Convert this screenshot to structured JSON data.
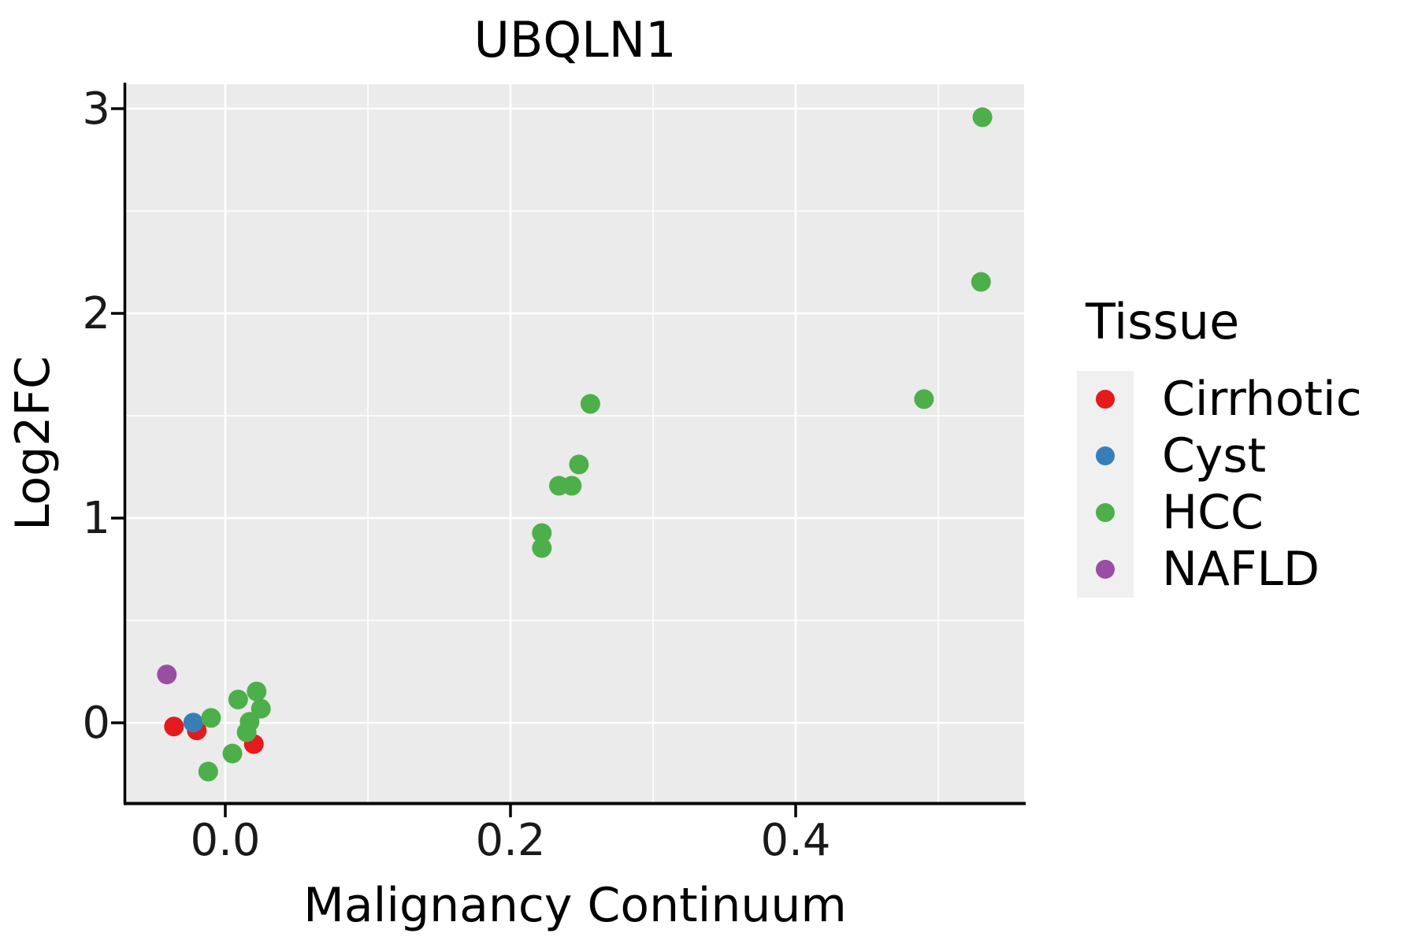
{
  "chart_data": {
    "type": "scatter",
    "title": "UBQLN1",
    "xlabel": "Malignancy Continuum",
    "ylabel": "Log2FC",
    "xlim": [
      -0.0696,
      0.5602
    ],
    "ylim": [
      -0.3885,
      3.1192
    ],
    "x_ticks": {
      "values": [
        0.0,
        0.2,
        0.4
      ],
      "labels": [
        "0.0",
        "0.2",
        "0.4"
      ]
    },
    "y_ticks": {
      "values": [
        0,
        1,
        2,
        3
      ],
      "labels": [
        "0",
        "1",
        "2",
        "3"
      ]
    },
    "x_minor_ticks": [
      0.1,
      0.3,
      0.5
    ],
    "y_minor_ticks": [
      0.5,
      1.5,
      2.5
    ],
    "grid": true,
    "panel_color": "#EBEBEB",
    "grid_color": "#FFFFFF",
    "axis_color": "#000000",
    "point_radius_px": 12.5,
    "legend": {
      "title": "Tissue",
      "position": "right",
      "key_fill": "#F0F0F0"
    },
    "series": [
      {
        "name": "Cirrhotic",
        "color": "#E41A1C",
        "points": [
          [
            -0.036,
            -0.018
          ],
          [
            -0.02,
            -0.037
          ],
          [
            0.02,
            -0.104
          ]
        ]
      },
      {
        "name": "Cyst",
        "color": "#377EB8",
        "points": [
          [
            -0.0225,
            0.001
          ]
        ]
      },
      {
        "name": "HCC",
        "color": "#4DAF4A",
        "points": [
          [
            -0.012,
            -0.238
          ],
          [
            0.005,
            -0.15
          ],
          [
            0.015,
            -0.046
          ],
          [
            0.017,
            0.005
          ],
          [
            -0.01,
            0.024
          ],
          [
            0.025,
            0.069
          ],
          [
            0.009,
            0.114
          ],
          [
            0.022,
            0.153
          ],
          [
            0.222,
            0.854
          ],
          [
            0.222,
            0.927
          ],
          [
            0.234,
            1.158
          ],
          [
            0.243,
            1.158
          ],
          [
            0.248,
            1.262
          ],
          [
            0.256,
            1.558
          ],
          [
            0.49,
            1.581
          ],
          [
            0.53,
            2.154
          ],
          [
            0.531,
            2.958
          ]
        ]
      },
      {
        "name": "NAFLD",
        "color": "#984EA3",
        "points": [
          [
            -0.041,
            0.236
          ]
        ]
      }
    ]
  }
}
